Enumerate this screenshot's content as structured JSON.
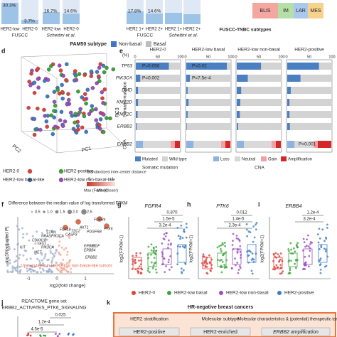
{
  "top": {
    "pct": [
      "30.3%",
      "3.7%",
      "16.7%",
      "14.6%",
      "17.8%",
      "14.6%"
    ],
    "cats": [
      "HER2-low",
      "HER2-0",
      "HER2-low",
      "HER2-0",
      "HER2 1+",
      "HER2 2+",
      "HER2 1+",
      "HER2 2+"
    ],
    "cohorts": [
      "FUSCC",
      "Schettini et al.",
      "FUSCC",
      "Schettini et al."
    ],
    "tnbc_title": "FUSCC-TNBC subtypes",
    "tnbc": [
      "BLIS",
      "IM",
      "LAR",
      "MES"
    ],
    "pam50_title": "PAM50 subtype",
    "pam50": [
      "Non-basal",
      "Basal"
    ]
  },
  "d": {
    "letter": "d",
    "axes": [
      "PC1",
      "PC2",
      "PC3"
    ],
    "groups": [
      "HER2-0",
      "HER2-positive",
      "HER2-low basal-like",
      "HER2-low non-basal-like"
    ],
    "dist_title": "Standardized inter-center distance",
    "dist_max": "Max (Farther)",
    "dist_min": "Min (Closer)",
    "dist_ticks": [
      "5",
      "1"
    ]
  },
  "e": {
    "letter": "e",
    "unit": "(%)",
    "scale": [
      "0",
      "50",
      "100"
    ],
    "columns": [
      "HER2-0",
      "HER2-low basal",
      "HER2-low non-basal",
      "HER2-positive"
    ],
    "rows": [
      "TP53",
      "PIK3CA",
      "DMD",
      "KMT2D",
      "KMT2C",
      "ERBB2",
      "ERBB2"
    ],
    "mutated": [
      [
        75,
        92,
        55,
        72
      ],
      [
        10,
        8,
        25,
        30
      ],
      [
        5,
        3,
        10,
        8
      ],
      [
        5,
        5,
        8,
        5
      ],
      [
        4,
        3,
        7,
        5
      ],
      [
        2,
        1,
        3,
        6
      ]
    ],
    "pvalues": [
      "P=0.050",
      "P=0.02",
      "P=0.002",
      "P=7.5e-4",
      "P=0.001"
    ],
    "sections": [
      "Somatic mutation",
      "CNA"
    ],
    "legend": [
      "Mutated",
      "Wild type",
      "Loss",
      "Neutral",
      "Gain",
      "Amplification"
    ],
    "legend_groups": [
      "Somatic mutation",
      "CNA"
    ]
  },
  "f": {
    "letter": "f",
    "size_title": "Difference between the median value of log transformed FPKM",
    "sizes": [
      "0.5",
      "1.0",
      "1.5",
      "2.0",
      "2.5"
    ],
    "ylabel": "-log10(adjusted P)",
    "xlabel": "log2(fold change)",
    "xticks": [
      "-1",
      "0",
      "1"
    ],
    "genes": [
      "FGFR4",
      "PTK6",
      "AKT1",
      "FGF18",
      "TSC2",
      "PDGFRB",
      "CASP3",
      "PIK3CA",
      "ERBB3",
      "ERBB4",
      "EGF",
      "ERBB2",
      "NRAS",
      "STRN",
      "CDKN1B",
      "YES1",
      "PIK3CA",
      "MET",
      "KIT"
    ],
    "note": "Up-regulated in HER2-low non-basal-like tumors"
  },
  "boxes": [
    {
      "letter": "g",
      "gene": "FGFR4",
      "p": [
        "0.870",
        "1.5e-5",
        "3.2e-4"
      ]
    },
    {
      "letter": "h",
      "gene": "PTK6",
      "p": [
        "0.012",
        "1.4e-5",
        "2.3e-4"
      ]
    },
    {
      "letter": "i",
      "gene": "ERBB4",
      "p": [
        "1.2e-4",
        "3.2e-4"
      ]
    }
  ],
  "box_ylabel": "log2(FPKM+1)",
  "box_legend": [
    "HER2-0",
    "HER2-low basal",
    "HER2-low non-basal",
    "HER2-positive"
  ],
  "j": {
    "letter": "j",
    "title": "REACTOME gene set",
    "set": "ERBB2_ACTIVATES_PTK6_SIGNALING",
    "p": [
      "0.025",
      "1.2e-4",
      "4.5e-5"
    ]
  },
  "k": {
    "letter": "k",
    "title": "HR-negative breast cancers",
    "headers": [
      "HER2 stratification",
      "Molecular subtype",
      "Molecular characteristics & (potential) therapeutic targets"
    ],
    "cells": [
      "HER2-positive",
      "HER2-enriched",
      "ERBB2 amplification"
    ]
  }
}
